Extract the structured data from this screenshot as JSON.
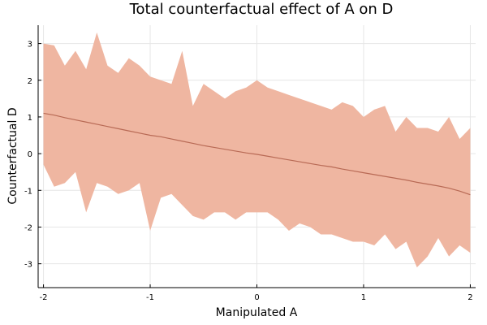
{
  "chart_data": {
    "type": "area",
    "title": "Total counterfactual effect of A on D",
    "xlabel": "Manipulated A",
    "ylabel": "Counterfactual D",
    "xlim": [
      -2.05,
      2.05
    ],
    "ylim": [
      -3.65,
      3.5
    ],
    "x_ticks": [
      -2,
      -1,
      0,
      1,
      2
    ],
    "y_ticks": [
      -3,
      -2,
      -1,
      0,
      1,
      2,
      3
    ],
    "x_tick_labels": [
      "-2",
      "-1",
      "0",
      "1",
      "2"
    ],
    "y_tick_labels": [
      "-3",
      "-2",
      "-1",
      "0",
      "1",
      "2",
      "3"
    ],
    "grid": true,
    "legend": false,
    "colors": {
      "band": "#efb6a1",
      "line": "#b86a55"
    },
    "series": [
      {
        "x": [
          -2.0,
          -1.9,
          -1.8,
          -1.7,
          -1.6,
          -1.5,
          -1.4,
          -1.3,
          -1.2,
          -1.1,
          -1.0,
          -0.9,
          -0.8,
          -0.7,
          -0.6,
          -0.5,
          -0.4,
          -0.3,
          -0.2,
          -0.1,
          0.0,
          0.1,
          0.2,
          0.3,
          0.4,
          0.5,
          0.6,
          0.7,
          0.8,
          0.9,
          1.0,
          1.1,
          1.2,
          1.3,
          1.4,
          1.5,
          1.6,
          1.7,
          1.8,
          1.9,
          2.0
        ],
        "mean": [
          1.1,
          1.05,
          0.98,
          0.92,
          0.86,
          0.8,
          0.74,
          0.68,
          0.62,
          0.56,
          0.5,
          0.46,
          0.4,
          0.34,
          0.28,
          0.22,
          0.17,
          0.12,
          0.07,
          0.02,
          -0.02,
          -0.07,
          -0.12,
          -0.17,
          -0.22,
          -0.27,
          -0.32,
          -0.36,
          -0.42,
          -0.47,
          -0.52,
          -0.57,
          -0.62,
          -0.67,
          -0.72,
          -0.78,
          -0.83,
          -0.88,
          -0.94,
          -1.02,
          -1.12
        ],
        "upper": [
          3.0,
          2.95,
          2.4,
          2.8,
          2.3,
          3.3,
          2.4,
          2.2,
          2.6,
          2.4,
          2.1,
          2.0,
          1.9,
          2.8,
          1.3,
          1.9,
          1.7,
          1.5,
          1.7,
          1.8,
          2.0,
          1.8,
          1.7,
          1.6,
          1.5,
          1.4,
          1.3,
          1.2,
          1.4,
          1.3,
          1.0,
          1.2,
          1.3,
          0.6,
          1.0,
          0.7,
          0.7,
          0.6,
          1.0,
          0.4,
          0.7
        ],
        "lower": [
          -0.3,
          -0.9,
          -0.8,
          -0.5,
          -1.6,
          -0.8,
          -0.9,
          -1.1,
          -1.0,
          -0.8,
          -2.1,
          -1.2,
          -1.1,
          -1.4,
          -1.7,
          -1.8,
          -1.6,
          -1.6,
          -1.8,
          -1.6,
          -1.6,
          -1.6,
          -1.8,
          -2.1,
          -1.9,
          -2.0,
          -2.2,
          -2.2,
          -2.3,
          -2.4,
          -2.4,
          -2.5,
          -2.2,
          -2.6,
          -2.4,
          -3.1,
          -2.8,
          -2.3,
          -2.8,
          -2.5,
          -2.7
        ]
      }
    ]
  }
}
